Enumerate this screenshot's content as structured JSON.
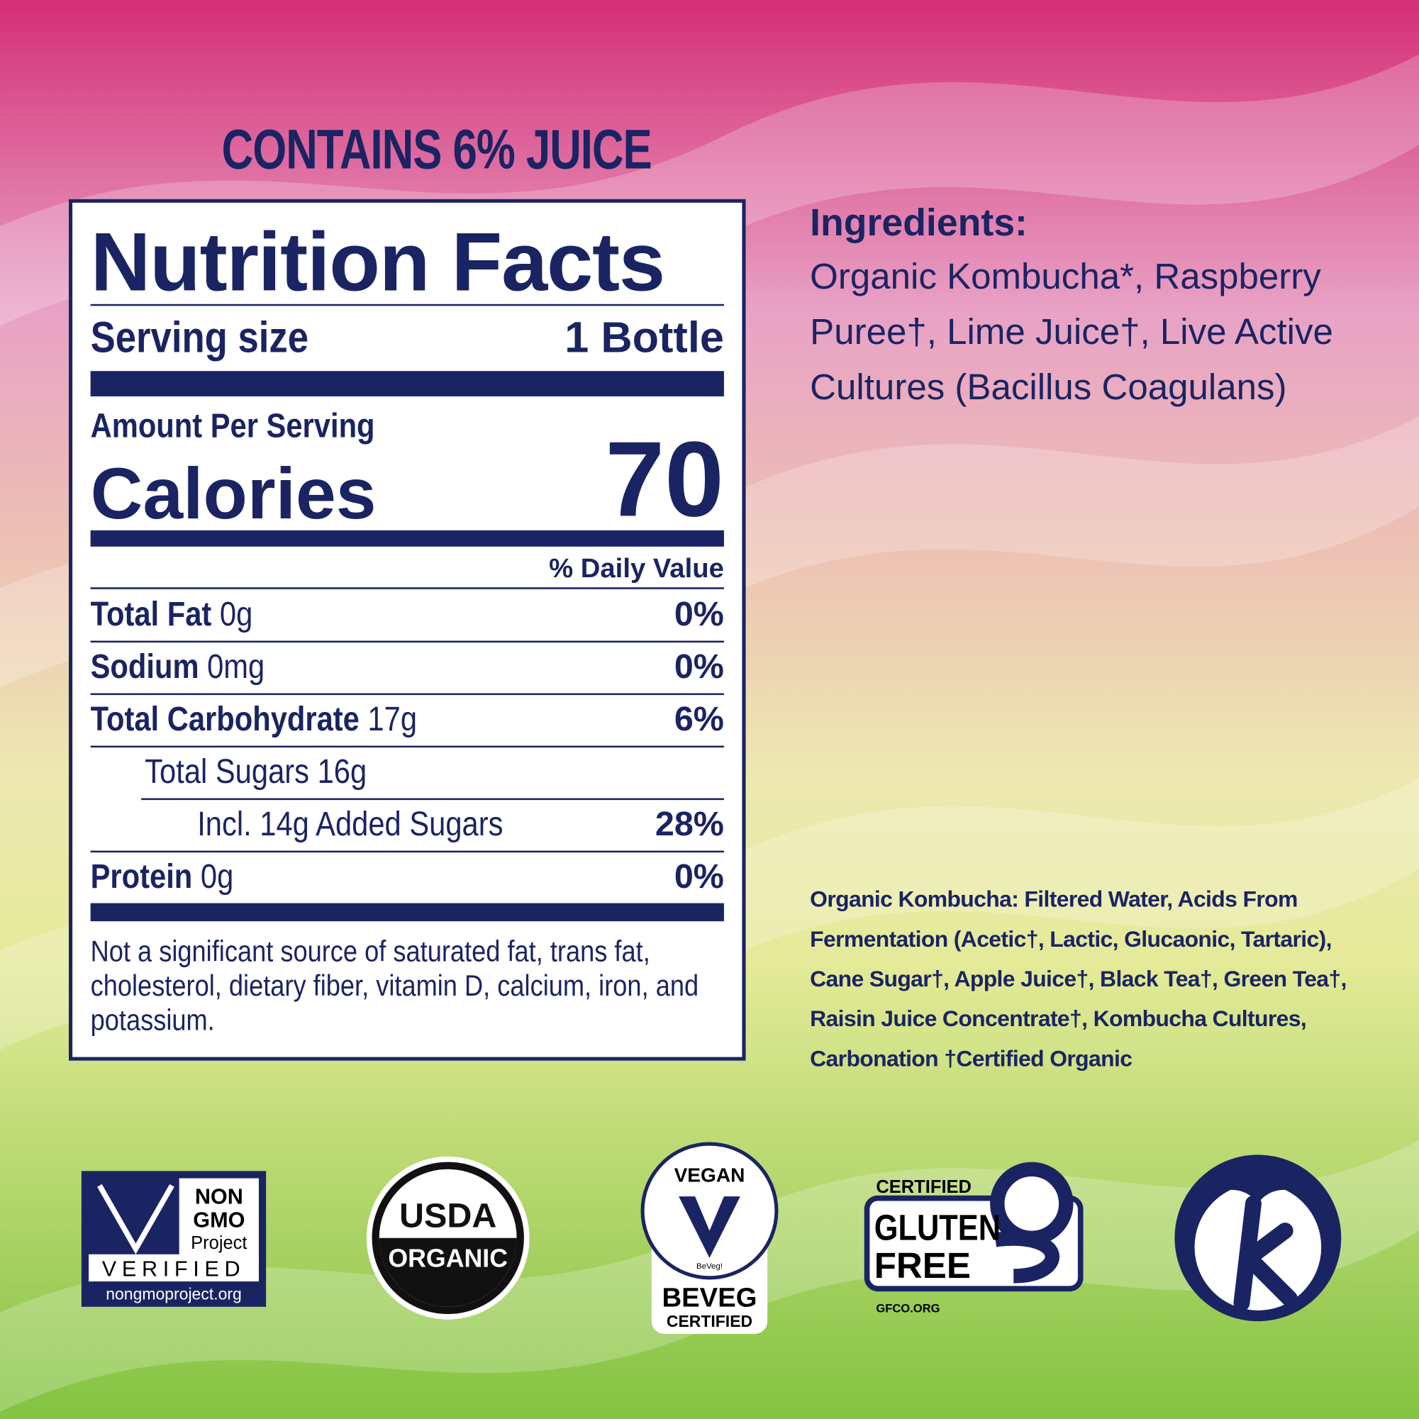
{
  "header": {
    "juice": "CONTAINS 6% JUICE"
  },
  "nutrition": {
    "title": "Nutrition Facts",
    "serving_label": "Serving size",
    "serving_value": "1 Bottle",
    "amount_label": "Amount Per Serving",
    "calories_label": "Calories",
    "calories": "70",
    "dv_header": "% Daily Value",
    "rows": [
      {
        "name": "Total Fat",
        "amount": "0g",
        "dv": "0%"
      },
      {
        "name": "Sodium",
        "amount": "0mg",
        "dv": "0%"
      },
      {
        "name": "Total Carbohydrate",
        "amount": "17g",
        "dv": "6%"
      },
      {
        "name": "Total Sugars 16g"
      },
      {
        "name": "Incl. 14g Added Sugars",
        "dv": "28%"
      },
      {
        "name": "Protein",
        "amount": "0g",
        "dv": "0%"
      }
    ],
    "footnote": "Not a significant source of saturated fat, trans fat, cholesterol, dietary fiber, vitamin D, calcium, iron, and potassium."
  },
  "ingredients": {
    "title": "Ingredients:",
    "text": "Organic Kombucha*, Raspberry Puree†, Lime Juice†, Live Active Cultures (Bacillus Coagulans)"
  },
  "kombucha_note": "Organic Kombucha: Filtered Water, Acids From Fermentation (Acetic†, Lactic, Glucaonic, Tartaric), Cane Sugar†, Apple Juice†, Black Tea†, Green Tea†, Raisin Juice Concentrate†, Kombucha Cultures, Carbonation †Certified Organic",
  "badges": {
    "nongmo": {
      "non": "NON",
      "gmo": "GMO",
      "project": "Project",
      "verified": "VERIFIED",
      "url": "nongmoproject.org"
    },
    "usda": {
      "top": "USDA",
      "bottom": "ORGANIC"
    },
    "beveg": {
      "vegan": "VEGAN",
      "small": "BeVeg!",
      "name": "BEVEG",
      "certified": "CERTIFIED"
    },
    "gluten": {
      "certified": "CERTIFIED",
      "line1": "GLUTEN",
      "line2": "FREE",
      "url": "GFCO.ORG"
    }
  }
}
